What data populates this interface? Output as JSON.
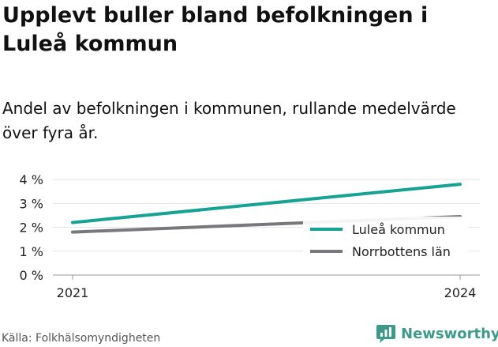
{
  "header": {
    "title": "Upplevt buller bland befolkningen i Luleå kommun",
    "subtitle": "Andel av befolkningen i kommunen, rullande medelvärde över fyra år."
  },
  "footer": {
    "source": "Källa: Folkhälsomyndigheten",
    "brand": "Newsworthy",
    "brand_color": "#3d9a8b"
  },
  "chart_data": {
    "type": "line",
    "x": [
      2021,
      2024
    ],
    "x_tick_labels": [
      "2021",
      "2024"
    ],
    "y_ticks": [
      0,
      1,
      2,
      3,
      4
    ],
    "y_tick_labels": [
      "0 %",
      "1 %",
      "2 %",
      "3 %",
      "4 %"
    ],
    "ylim": [
      0,
      4.4
    ],
    "grid": true,
    "legend_position": "bottom-right",
    "series": [
      {
        "name": "Luleå kommun",
        "color": "#16a394",
        "values": [
          2.2,
          3.8
        ]
      },
      {
        "name": "Norrbottens län",
        "color": "#7a777d",
        "values": [
          1.8,
          2.45
        ]
      }
    ]
  }
}
